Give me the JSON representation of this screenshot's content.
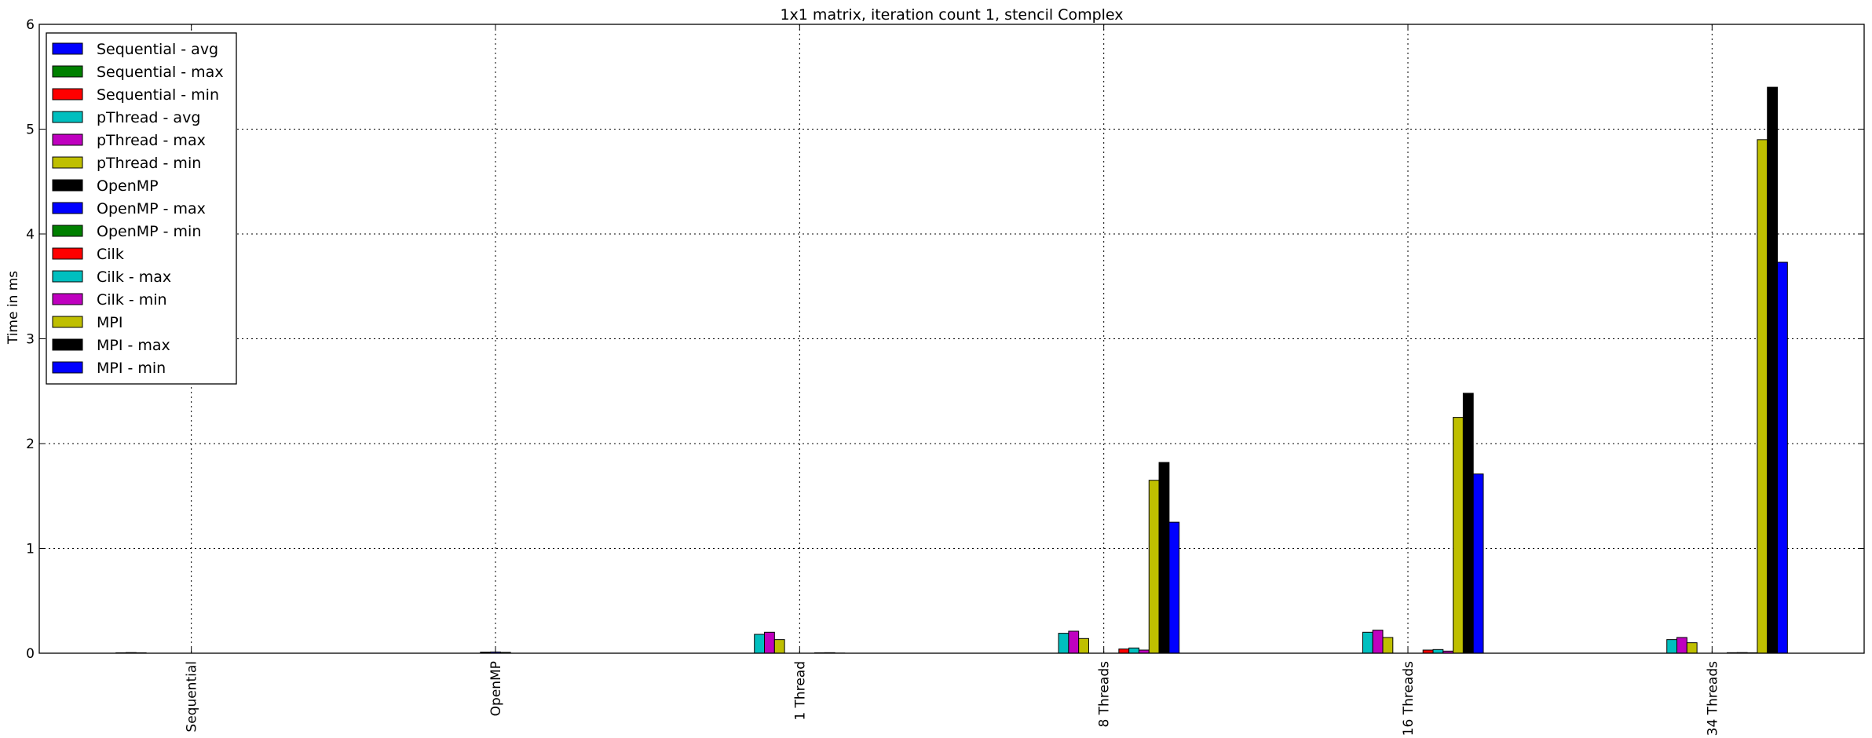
{
  "chart_data": {
    "type": "bar",
    "title": "1x1 matrix, iteration count 1, stencil Complex",
    "xlabel": "",
    "ylabel": "Time in ms",
    "ylim": [
      0,
      6
    ],
    "yticks": [
      "0",
      "1",
      "2",
      "3",
      "4",
      "5",
      "6"
    ],
    "grid": true,
    "legend_position": "top-left",
    "categories": [
      "Sequential",
      "OpenMP",
      "1 Thread",
      "8 Threads",
      "16 Threads",
      "34 Threads"
    ],
    "series": [
      {
        "name": "Sequential - avg",
        "color": "#0000ff",
        "values": [
          0.004,
          0,
          0,
          0,
          0,
          0
        ]
      },
      {
        "name": "Sequential - max",
        "color": "#008000",
        "values": [
          0.006,
          0,
          0,
          0,
          0,
          0
        ]
      },
      {
        "name": "Sequential - min",
        "color": "#ff0000",
        "values": [
          0.004,
          0,
          0,
          0,
          0,
          0
        ]
      },
      {
        "name": "pThread - avg",
        "color": "#00bfbf",
        "values": [
          0,
          0,
          0.18,
          0.19,
          0.2,
          0.13
        ]
      },
      {
        "name": "pThread - max",
        "color": "#bf00bf",
        "values": [
          0,
          0,
          0.2,
          0.21,
          0.22,
          0.15
        ]
      },
      {
        "name": "pThread - min",
        "color": "#bfbf00",
        "values": [
          0,
          0,
          0.13,
          0.14,
          0.15,
          0.1
        ]
      },
      {
        "name": "OpenMP",
        "color": "#000000",
        "values": [
          0,
          0.01,
          0,
          0,
          0,
          0
        ]
      },
      {
        "name": "OpenMP - max",
        "color": "#0000ff",
        "values": [
          0,
          0.012,
          0,
          0,
          0,
          0
        ]
      },
      {
        "name": "OpenMP - min",
        "color": "#008000",
        "values": [
          0,
          0.008,
          0,
          0,
          0,
          0
        ]
      },
      {
        "name": "Cilk",
        "color": "#ff0000",
        "values": [
          0,
          0,
          0.004,
          0.04,
          0.03,
          0.005
        ]
      },
      {
        "name": "Cilk - max",
        "color": "#00bfbf",
        "values": [
          0,
          0,
          0.005,
          0.05,
          0.035,
          0.006
        ]
      },
      {
        "name": "Cilk - min",
        "color": "#bf00bf",
        "values": [
          0,
          0,
          0.003,
          0.03,
          0.02,
          0.004
        ]
      },
      {
        "name": "MPI",
        "color": "#bfbf00",
        "values": [
          0,
          0,
          0,
          1.65,
          2.25,
          4.9
        ]
      },
      {
        "name": "MPI - max",
        "color": "#000000",
        "values": [
          0,
          0,
          0,
          1.82,
          2.48,
          5.4
        ]
      },
      {
        "name": "MPI - min",
        "color": "#0000ff",
        "values": [
          0,
          0,
          0,
          1.25,
          1.71,
          3.73
        ]
      }
    ]
  }
}
